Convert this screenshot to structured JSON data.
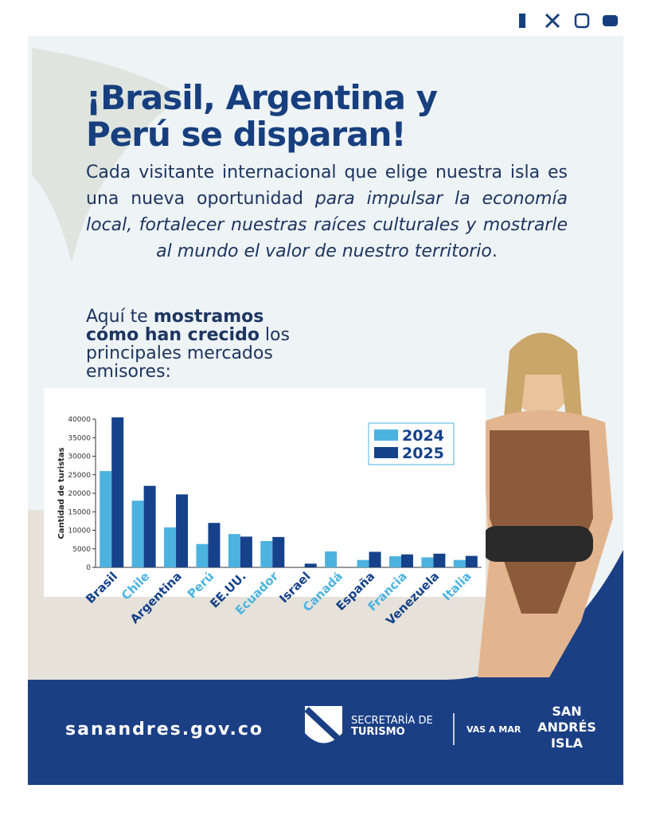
{
  "header": {
    "title_line1": "¡Brasil, Argentina y",
    "title_line2": "Perú se disparan!",
    "paragraph": {
      "plain": "Cada visitante internacional que elige nuestra isla es una nueva oportunidad ",
      "italic": "para impulsar la economía local, fortalecer nuestras raíces culturales y mostrarle al mundo el valor de nuestro territorio",
      "end": "."
    },
    "subtitle": {
      "plain": "Aquí te ",
      "bold": "mostramos cómo han crecido",
      "rest": " los principales mercados emisores:"
    }
  },
  "chart_data": {
    "type": "bar",
    "y_label": "Cantidad de turistas",
    "categories": [
      "Brasil",
      "Chile",
      "Argentina",
      "Perú",
      "EE.UU.",
      "Ecuador",
      "Israel",
      "Canadá",
      "España",
      "Francia",
      "Venezuela",
      "Italia"
    ],
    "series": [
      {
        "name": "2024",
        "color": "#4cb3e0",
        "values": [
          26000,
          18000,
          10800,
          6300,
          9000,
          7100,
          null,
          4300,
          2000,
          3000,
          2700,
          2000
        ]
      },
      {
        "name": "2025",
        "color": "#15428a",
        "values": [
          40500,
          22000,
          19700,
          12000,
          8300,
          8200,
          1000,
          null,
          4200,
          3500,
          3700,
          3100
        ]
      }
    ],
    "ylim": [
      0,
      40000
    ],
    "yticks": [
      0,
      5000,
      10000,
      15000,
      20000,
      25000,
      30000,
      35000,
      40000
    ]
  },
  "footer": {
    "site": "sanandres.gov.co",
    "dept1": "SECRETARÍA DE",
    "dept2": "TURISMO",
    "slogan": "VAS A MAR",
    "logo1": "SAN",
    "logo2": "ANDRÉS",
    "logo3": "ISLA"
  }
}
